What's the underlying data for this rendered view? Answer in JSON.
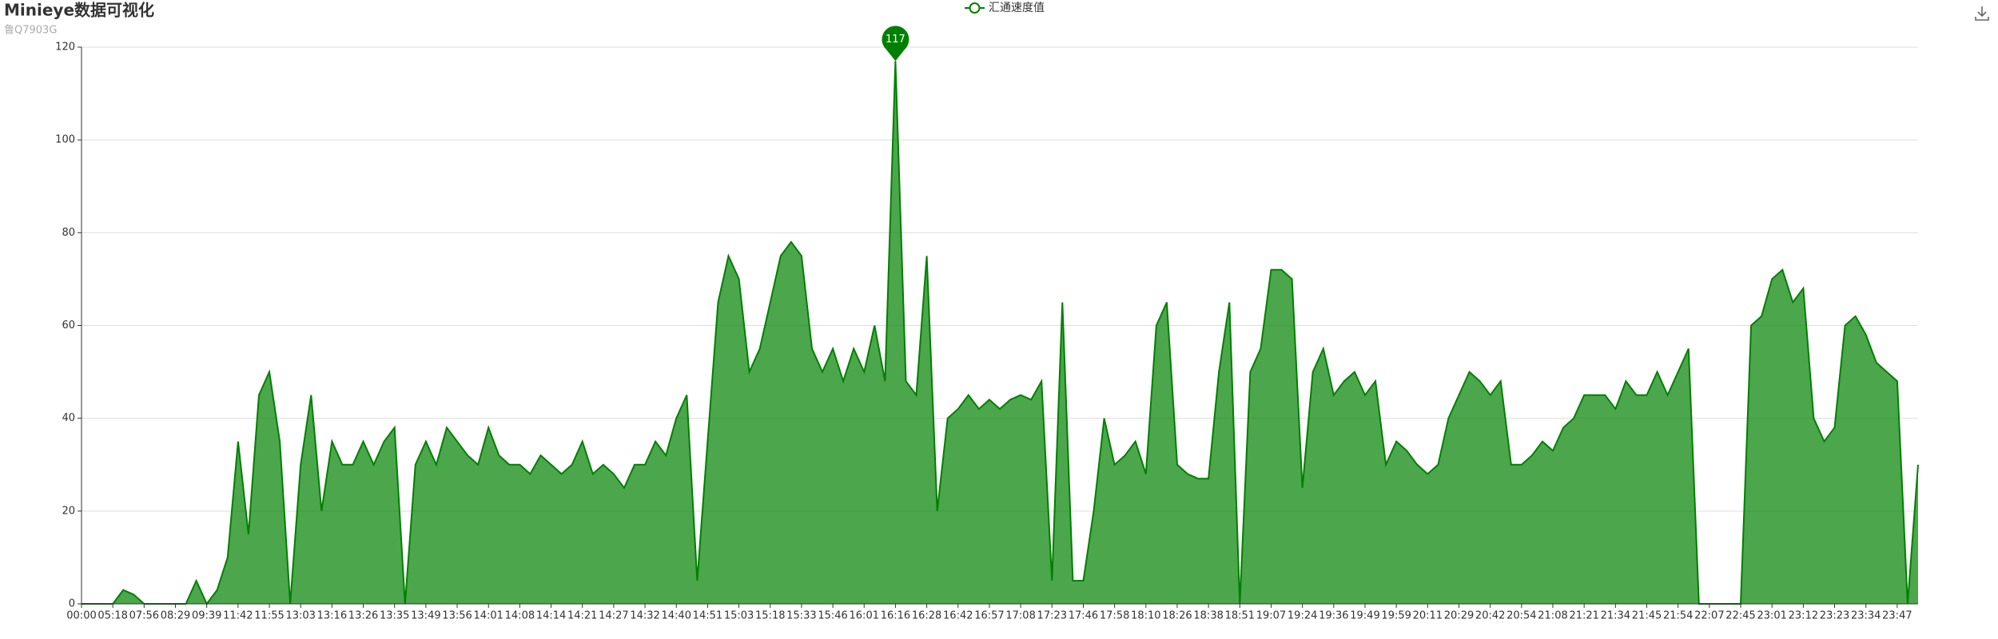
{
  "chart_data": {
    "type": "area",
    "title": "Minieye数据可视化",
    "subtitle": "鲁Q7903G",
    "categories": [
      "00:00",
      null,
      null,
      "05:18",
      null,
      null,
      "07:56",
      null,
      null,
      "08:29",
      null,
      null,
      "09:39",
      null,
      null,
      "11:42",
      null,
      null,
      "11:55",
      null,
      null,
      "13:03",
      null,
      null,
      "13:16",
      null,
      null,
      "13:26",
      null,
      null,
      "13:35",
      null,
      null,
      "13:49",
      null,
      null,
      "13:56",
      null,
      null,
      "14:01",
      null,
      null,
      "14:08",
      null,
      null,
      "14:14",
      null,
      null,
      "14:21",
      null,
      null,
      "14:27",
      null,
      null,
      "14:32",
      null,
      null,
      "14:40",
      null,
      null,
      "14:51",
      null,
      null,
      "15:03",
      null,
      null,
      "15:18",
      null,
      null,
      "15:33",
      null,
      null,
      "15:46",
      null,
      null,
      "16:01",
      null,
      null,
      "16:16",
      null,
      null,
      "16:28",
      null,
      null,
      "16:42",
      null,
      null,
      "16:57",
      null,
      null,
      "17:08",
      null,
      null,
      "17:23",
      null,
      null,
      "17:46",
      null,
      null,
      "17:58",
      null,
      null,
      "18:10",
      null,
      null,
      "18:26",
      null,
      null,
      "18:38",
      null,
      null,
      "18:51",
      null,
      null,
      "19:07",
      null,
      null,
      "19:24",
      null,
      null,
      "19:36",
      null,
      null,
      "19:49",
      null,
      null,
      "19:59",
      null,
      null,
      "20:11",
      null,
      null,
      "20:29",
      null,
      null,
      "20:42",
      null,
      null,
      "20:54",
      null,
      null,
      "21:08",
      null,
      null,
      "21:21",
      null,
      null,
      "21:34",
      null,
      null,
      "21:45",
      null,
      null,
      "21:54",
      null,
      null,
      "22:07",
      null,
      null,
      "22:45",
      null,
      null,
      "23:01",
      null,
      null,
      "23:12",
      null,
      null,
      "23:23",
      null,
      null,
      "23:34",
      null,
      null,
      "23:47",
      null,
      null
    ],
    "series": [
      {
        "name": "汇通速度值",
        "color": "#008000",
        "values": [
          0,
          0,
          0,
          0,
          3,
          2,
          0,
          0,
          0,
          0,
          0,
          5,
          0,
          3,
          10,
          35,
          15,
          45,
          50,
          35,
          0,
          30,
          45,
          20,
          35,
          30,
          30,
          35,
          30,
          35,
          38,
          0,
          30,
          35,
          30,
          38,
          35,
          32,
          30,
          38,
          32,
          30,
          30,
          28,
          32,
          30,
          28,
          30,
          35,
          28,
          30,
          28,
          25,
          30,
          30,
          35,
          32,
          40,
          45,
          5,
          35,
          65,
          75,
          70,
          50,
          55,
          65,
          75,
          78,
          75,
          55,
          50,
          55,
          48,
          55,
          50,
          60,
          48,
          117,
          48,
          45,
          75,
          20,
          40,
          42,
          45,
          42,
          44,
          42,
          44,
          45,
          44,
          48,
          5,
          65,
          5,
          5,
          20,
          40,
          30,
          32,
          35,
          28,
          60,
          65,
          30,
          28,
          27,
          27,
          50,
          65,
          0,
          50,
          55,
          72,
          72,
          70,
          25,
          50,
          55,
          45,
          48,
          50,
          45,
          48,
          30,
          35,
          33,
          30,
          28,
          30,
          40,
          45,
          50,
          48,
          45,
          48,
          30,
          30,
          32,
          35,
          33,
          38,
          40,
          45,
          45,
          45,
          42,
          48,
          45,
          45,
          50,
          45,
          50,
          55,
          0,
          0,
          0,
          0,
          0,
          60,
          62,
          70,
          72,
          65,
          68,
          40,
          35,
          38,
          60,
          62,
          58,
          52,
          50,
          48,
          0,
          30
        ]
      }
    ],
    "mark_point": {
      "value": 117
    },
    "ylim": [
      0,
      120
    ],
    "yticks": [
      0,
      20,
      40,
      60,
      80,
      100,
      120
    ],
    "grid": true,
    "legend": "top"
  }
}
